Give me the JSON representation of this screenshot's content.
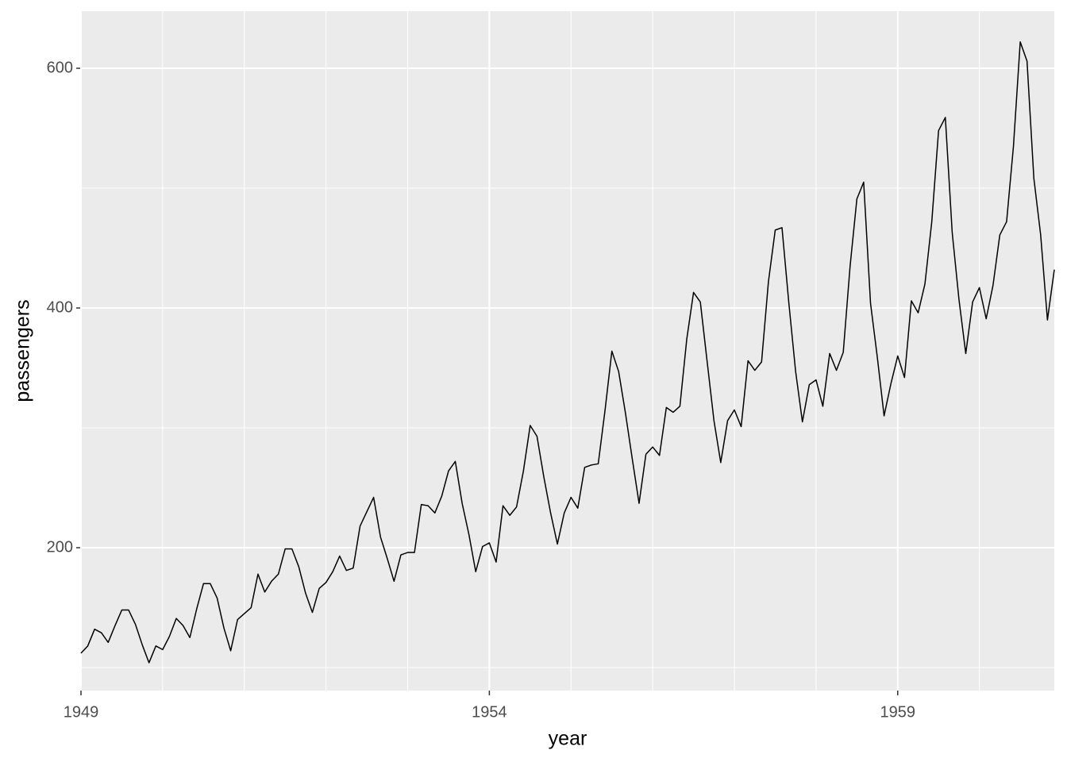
{
  "chart_data": {
    "type": "line",
    "x_label": "year",
    "y_label": "passengers",
    "xlim": [
      1949,
      1960.917
    ],
    "ylim": [
      80.8,
      647.7
    ],
    "xticks": [
      1949,
      1954,
      1959
    ],
    "x_minor_ticks": [
      1950,
      1951,
      1952,
      1953,
      1955,
      1956,
      1957,
      1958,
      1960
    ],
    "yticks": [
      200,
      400,
      600
    ],
    "y_minor_ticks": [
      100,
      300,
      500
    ],
    "grid": true,
    "color": "#000000",
    "x": [
      1949,
      1949.083,
      1949.167,
      1949.25,
      1949.333,
      1949.417,
      1949.5,
      1949.583,
      1949.667,
      1949.75,
      1949.833,
      1949.917,
      1950,
      1950.083,
      1950.167,
      1950.25,
      1950.333,
      1950.417,
      1950.5,
      1950.583,
      1950.667,
      1950.75,
      1950.833,
      1950.917,
      1951,
      1951.083,
      1951.167,
      1951.25,
      1951.333,
      1951.417,
      1951.5,
      1951.583,
      1951.667,
      1951.75,
      1951.833,
      1951.917,
      1952,
      1952.083,
      1952.167,
      1952.25,
      1952.333,
      1952.417,
      1952.5,
      1952.583,
      1952.667,
      1952.75,
      1952.833,
      1952.917,
      1953,
      1953.083,
      1953.167,
      1953.25,
      1953.333,
      1953.417,
      1953.5,
      1953.583,
      1953.667,
      1953.75,
      1953.833,
      1953.917,
      1954,
      1954.083,
      1954.167,
      1954.25,
      1954.333,
      1954.417,
      1954.5,
      1954.583,
      1954.667,
      1954.75,
      1954.833,
      1954.917,
      1955,
      1955.083,
      1955.167,
      1955.25,
      1955.333,
      1955.417,
      1955.5,
      1955.583,
      1955.667,
      1955.75,
      1955.833,
      1955.917,
      1956,
      1956.083,
      1956.167,
      1956.25,
      1956.333,
      1956.417,
      1956.5,
      1956.583,
      1956.667,
      1956.75,
      1956.833,
      1956.917,
      1957,
      1957.083,
      1957.167,
      1957.25,
      1957.333,
      1957.417,
      1957.5,
      1957.583,
      1957.667,
      1957.75,
      1957.833,
      1957.917,
      1958,
      1958.083,
      1958.167,
      1958.25,
      1958.333,
      1958.417,
      1958.5,
      1958.583,
      1958.667,
      1958.75,
      1958.833,
      1958.917,
      1959,
      1959.083,
      1959.167,
      1959.25,
      1959.333,
      1959.417,
      1959.5,
      1959.583,
      1959.667,
      1959.75,
      1959.833,
      1959.917,
      1960,
      1960.083,
      1960.167,
      1960.25,
      1960.333,
      1960.417,
      1960.5,
      1960.583,
      1960.667,
      1960.75,
      1960.833,
      1960.917
    ],
    "values": [
      112,
      118,
      132,
      129,
      121,
      135,
      148,
      148,
      136,
      119,
      104,
      118,
      115,
      126,
      141,
      135,
      125,
      149,
      170,
      170,
      158,
      133,
      114,
      140,
      145,
      150,
      178,
      163,
      172,
      178,
      199,
      199,
      184,
      162,
      146,
      166,
      171,
      180,
      193,
      181,
      183,
      218,
      230,
      242,
      209,
      191,
      172,
      194,
      196,
      196,
      236,
      235,
      229,
      243,
      264,
      272,
      237,
      211,
      180,
      201,
      204,
      188,
      235,
      227,
      234,
      264,
      302,
      293,
      259,
      229,
      203,
      229,
      242,
      233,
      267,
      269,
      270,
      315,
      364,
      347,
      312,
      274,
      237,
      278,
      284,
      277,
      317,
      313,
      318,
      374,
      413,
      405,
      355,
      306,
      271,
      306,
      315,
      301,
      356,
      348,
      355,
      422,
      465,
      467,
      404,
      347,
      305,
      336,
      340,
      318,
      362,
      348,
      363,
      435,
      491,
      505,
      404,
      359,
      310,
      337,
      360,
      342,
      406,
      396,
      420,
      472,
      548,
      559,
      463,
      407,
      362,
      405,
      417,
      391,
      419,
      461,
      472,
      535,
      622,
      606,
      508,
      461,
      390,
      432
    ]
  }
}
